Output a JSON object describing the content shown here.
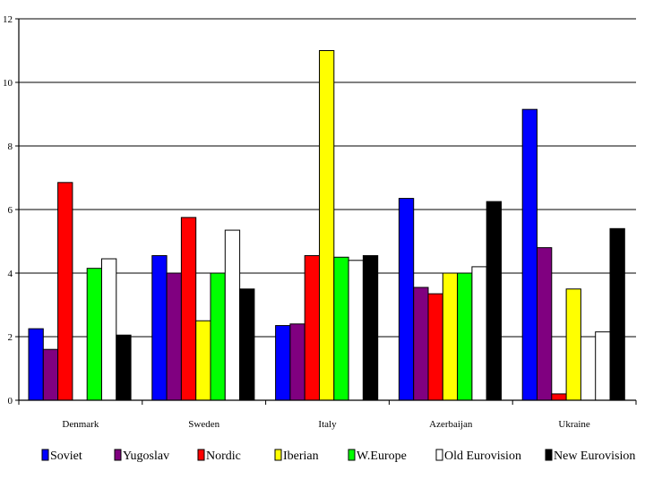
{
  "chart_data": {
    "type": "bar",
    "title": "",
    "xlabel": "",
    "ylabel": "",
    "ylim": [
      0,
      12
    ],
    "yticks": [
      "0",
      "2",
      "4",
      "6",
      "8",
      "10",
      "12"
    ],
    "grid": true,
    "legend_position": "bottom",
    "categories": [
      "Denmark",
      "Sweden",
      "Italy",
      "Azerbaijan",
      "Ukraine"
    ],
    "series": [
      {
        "name": "Soviet",
        "color": "#0000ff",
        "values": [
          2.25,
          4.55,
          2.35,
          6.35,
          9.15
        ]
      },
      {
        "name": "Yugoslav",
        "color": "#800080",
        "values": [
          1.6,
          4.0,
          2.4,
          3.55,
          4.8
        ]
      },
      {
        "name": "Nordic",
        "color": "#ff0000",
        "values": [
          6.85,
          5.75,
          4.55,
          3.35,
          0.2
        ]
      },
      {
        "name": "Iberian",
        "color": "#ffff00",
        "values": [
          0,
          2.5,
          11.0,
          4.0,
          3.5
        ]
      },
      {
        "name": "W.Europe",
        "color": "#00ff00",
        "values": [
          4.15,
          4.0,
          4.5,
          4.0,
          0
        ]
      },
      {
        "name": "Old Eurovision",
        "color": "#ffffff",
        "values": [
          4.45,
          5.35,
          4.4,
          4.2,
          2.15
        ]
      },
      {
        "name": "New Eurovision",
        "color": "#000000",
        "values": [
          2.05,
          3.5,
          4.55,
          6.25,
          5.4
        ]
      }
    ]
  }
}
